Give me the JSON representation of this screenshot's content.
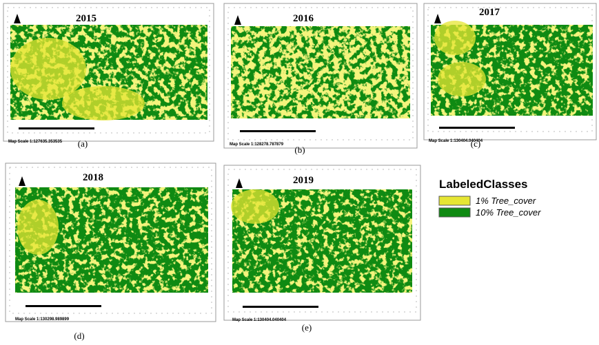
{
  "panels": [
    {
      "year": "2015",
      "scale": "Map Scale 1:127635.353535",
      "caption": "(a)"
    },
    {
      "year": "2016",
      "scale": "Map Scale 1:128278.787879",
      "caption": "(b)"
    },
    {
      "year": "2017",
      "scale": "Map Scale 1:130404.040404",
      "caption": "(c)"
    },
    {
      "year": "2018",
      "scale": "Map Scale 1:130298.989899",
      "caption": "(d)"
    },
    {
      "year": "2019",
      "scale": "Map Scale 1:130404.040404",
      "caption": "(e)"
    }
  ],
  "legend": {
    "title": "LabeledClasses",
    "items": [
      {
        "label": "1% Tree_cover",
        "color": "#e6e633"
      },
      {
        "label": "10% Tree_cover",
        "color": "#0f8a12"
      }
    ]
  }
}
